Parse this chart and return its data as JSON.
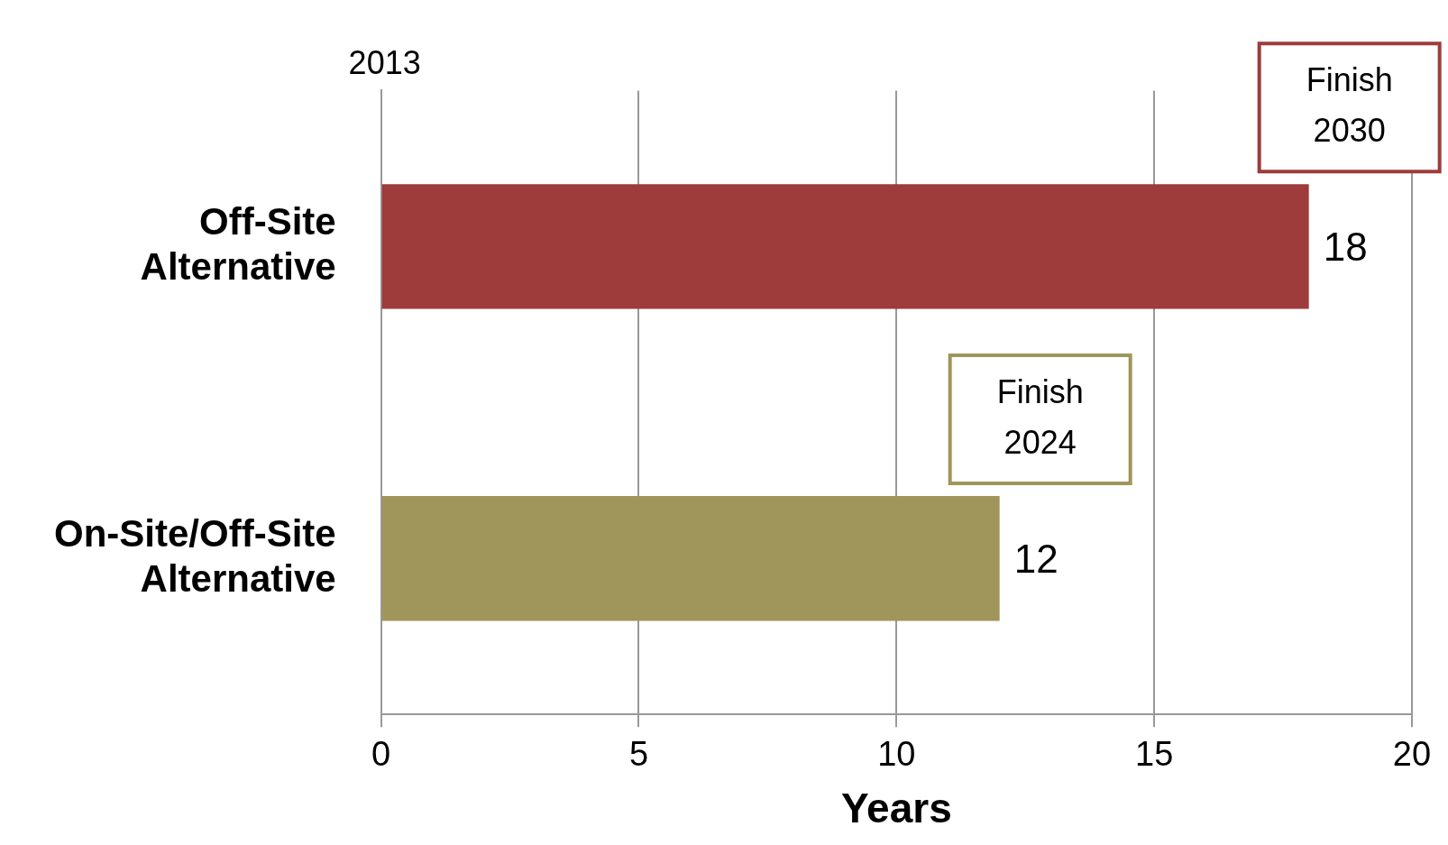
{
  "chart_data": {
    "type": "bar",
    "orientation": "horizontal",
    "categories": [
      "Off-Site Alternative",
      "On-Site/Off-Site Alternative"
    ],
    "values": [
      18,
      12
    ],
    "colors": [
      "#9e3b3b",
      "#a0955b"
    ],
    "xlim": [
      0,
      20
    ],
    "xticks": [
      0,
      5,
      10,
      15,
      20
    ],
    "xlabel": "Years",
    "grid": "x",
    "legend": false,
    "data_labels": true,
    "annotations": [
      "2013",
      {
        "text": "Finish 2030",
        "x": 18,
        "y": "Off-Site Alternative"
      },
      {
        "text": "Finish 2024",
        "x": 12,
        "y": "On-Site/Off-Site Alternative"
      }
    ]
  }
}
